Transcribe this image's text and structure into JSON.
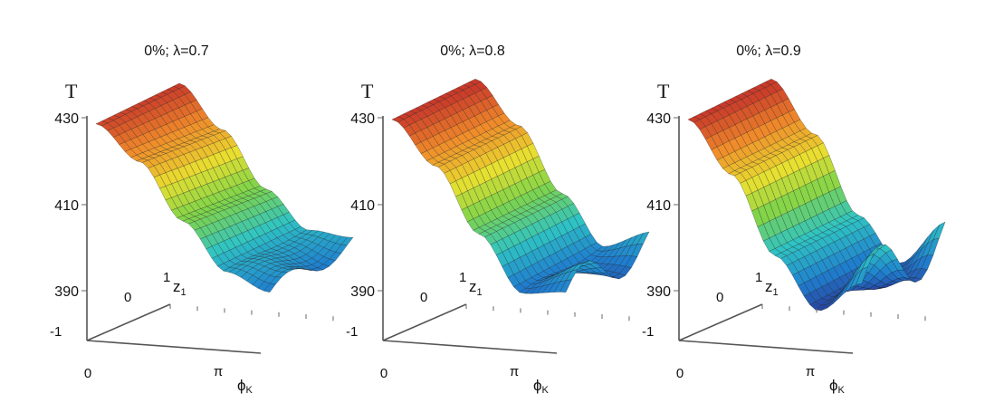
{
  "chart_data": [
    {
      "type": "surface",
      "title": "0%;  λ=0.7",
      "zlabel": "T",
      "z_ticks": [
        "430",
        "410",
        "390"
      ],
      "y_ticks": [
        "1",
        "0",
        "-1"
      ],
      "x_ticks": [
        "0",
        "π"
      ],
      "x_label_main": "ϕ",
      "x_label_sub": "K",
      "y_label_main": "z",
      "y_label_sub": "1",
      "zlim": [
        390,
        430
      ],
      "ylim": [
        -1,
        1
      ],
      "xlim": [
        "0",
        "π"
      ],
      "surface_samples": {
        "phi_fraction": [
          0,
          0.25,
          0.5,
          0.75,
          1
        ],
        "T_at_z_minus_1": [
          429,
          421,
          408,
          397,
          393
        ],
        "T_at_z_plus_1": [
          430,
          420,
          407,
          398,
          396
        ]
      },
      "colormap": [
        "#2b2b8c",
        "#1f7fcf",
        "#2fc4c4",
        "#7fd44a",
        "#e8e030",
        "#f08a2a",
        "#c93a2a"
      ]
    },
    {
      "type": "surface",
      "title": "0%;  λ=0.8",
      "zlabel": "T",
      "z_ticks": [
        "430",
        "410",
        "390"
      ],
      "y_ticks": [
        "1",
        "0",
        "-1"
      ],
      "x_ticks": [
        "0",
        "π"
      ],
      "x_label_main": "ϕ",
      "x_label_sub": "K",
      "y_label_main": "z",
      "y_label_sub": "1",
      "zlim": [
        390,
        430
      ],
      "ylim": [
        -1,
        1
      ],
      "xlim": [
        "0",
        "π"
      ],
      "surface_samples": {
        "phi_fraction": [
          0,
          0.25,
          0.5,
          0.75,
          1
        ],
        "T_at_z_minus_1": [
          430,
          420,
          405,
          392,
          393
        ],
        "T_at_z_plus_1": [
          431,
          421,
          406,
          394,
          396
        ]
      },
      "colormap": [
        "#2b2b8c",
        "#1f7fcf",
        "#2fc4c4",
        "#7fd44a",
        "#e8e030",
        "#f08a2a",
        "#c93a2a"
      ]
    },
    {
      "type": "surface",
      "title": "0%;  λ=0.9",
      "zlabel": "T",
      "z_ticks": [
        "430",
        "410",
        "390"
      ],
      "y_ticks": [
        "1",
        "0",
        "-1"
      ],
      "x_ticks": [
        "0",
        "π"
      ],
      "x_label_main": "ϕ",
      "x_label_sub": "K",
      "y_label_main": "z",
      "y_label_sub": "1",
      "zlim": [
        390,
        430
      ],
      "ylim": [
        -1,
        1
      ],
      "xlim": [
        "0",
        "π"
      ],
      "surface_samples": {
        "phi_fraction": [
          0,
          0.25,
          0.5,
          0.75,
          1
        ],
        "T_at_z_minus_1": [
          430,
          418,
          400,
          388,
          395
        ],
        "T_at_z_plus_1": [
          431,
          419,
          401,
          390,
          397
        ]
      },
      "colormap": [
        "#2b2b8c",
        "#1f7fcf",
        "#2fc4c4",
        "#7fd44a",
        "#e8e030",
        "#f08a2a",
        "#c93a2a"
      ]
    }
  ]
}
